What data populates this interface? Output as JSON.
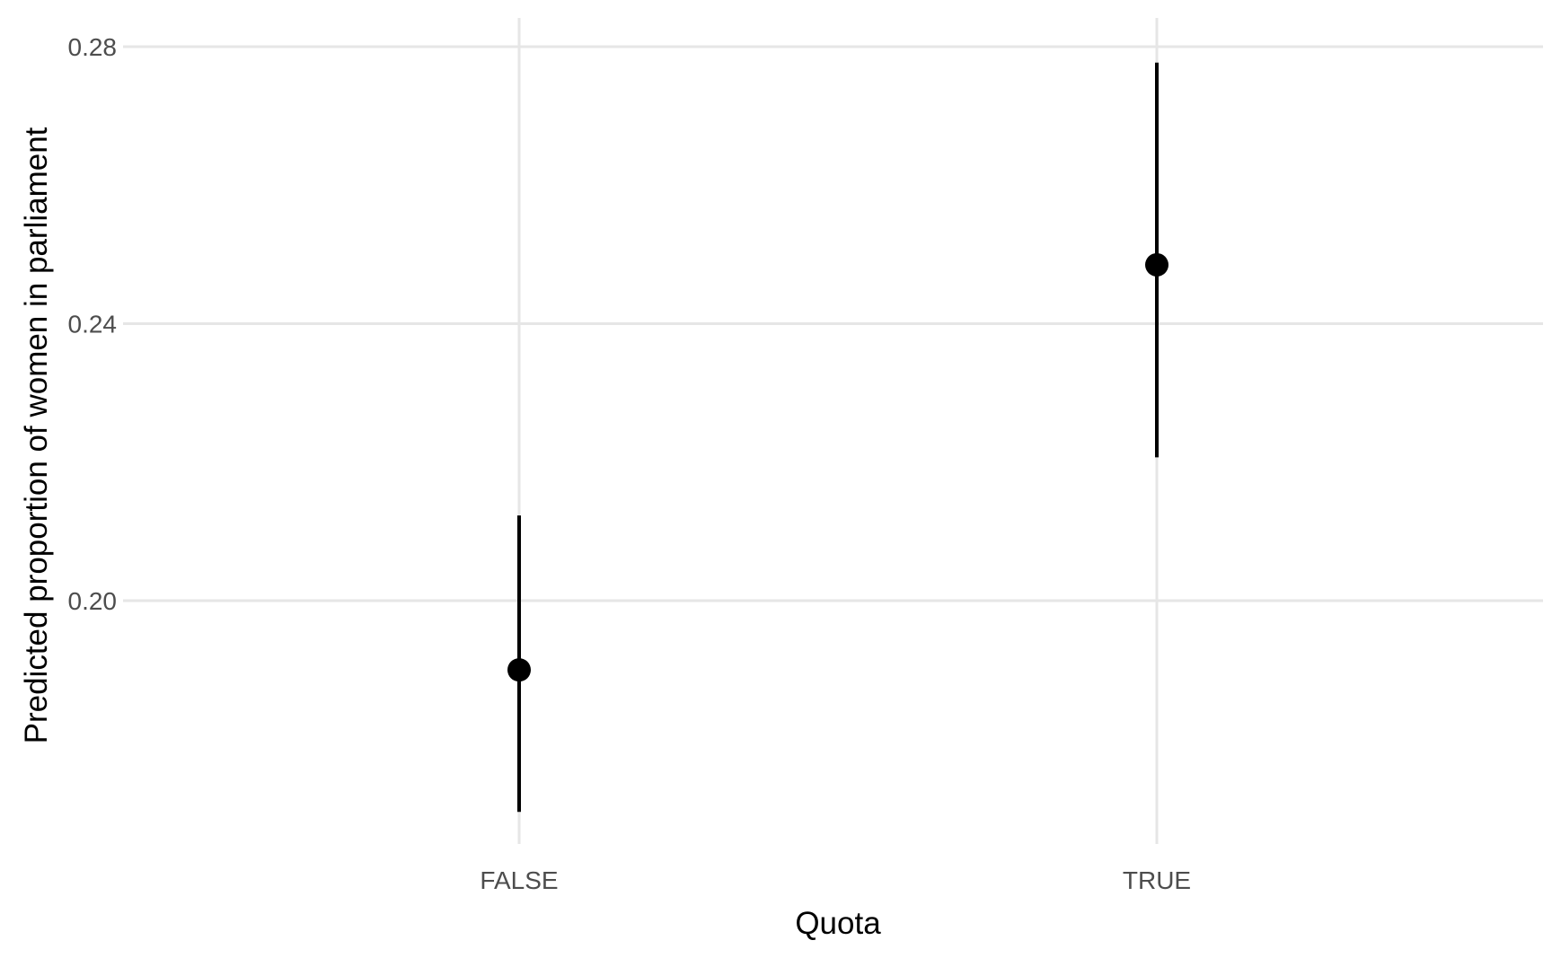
{
  "chart_data": {
    "type": "pointrange",
    "xlabel": "Quota",
    "ylabel": "Predicted proportion of women in parliament",
    "categories": [
      "FALSE",
      "TRUE"
    ],
    "points": [
      {
        "category": "FALSE",
        "estimate": 0.19,
        "lower": 0.1695,
        "upper": 0.2123
      },
      {
        "category": "TRUE",
        "estimate": 0.2485,
        "lower": 0.2207,
        "upper": 0.2777
      }
    ],
    "yticks": [
      0.2,
      0.24,
      0.28
    ],
    "ytick_labels": [
      "0.20",
      "0.24",
      "0.28"
    ],
    "ylim": [
      0.1645,
      0.2825
    ],
    "grid": true,
    "legend": "none",
    "colors": {
      "point": "#000000",
      "grid": "#e6e6e6",
      "tick_text": "#4d4d4d"
    }
  }
}
